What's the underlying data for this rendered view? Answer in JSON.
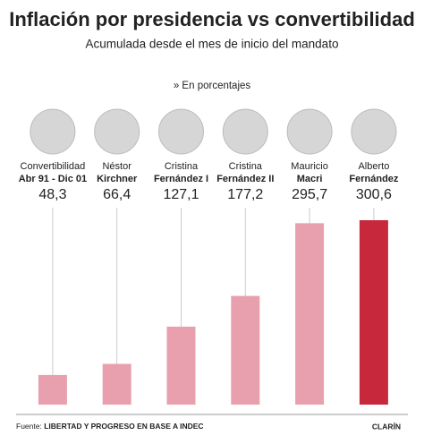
{
  "chart_data": {
    "type": "bar",
    "title": "Inflación por presidencia vs convertibilidad",
    "subtitle": "Acumulada desde el mes de inicio del mandato",
    "unit_note": "» En porcentajes",
    "categories": [
      "Convertibilidad",
      "Néstor",
      "Cristina",
      "Cristina",
      "Mauricio",
      "Alberto"
    ],
    "category_details": [
      "Abr 91 - Dic 01",
      "Kirchner",
      "Fernández I",
      "Fernández II",
      "Macri",
      "Fernández"
    ],
    "values": [
      48.3,
      66.4,
      127.1,
      177.2,
      295.7,
      300.6
    ],
    "value_labels": [
      "48,3",
      "66,4",
      "127,1",
      "177,2",
      "295,7",
      "300,6"
    ],
    "colors": [
      "#e8a0ae",
      "#e8a0ae",
      "#e8a0ae",
      "#e8a0ae",
      "#e8a0ae",
      "#c8283c"
    ],
    "label_color": "#c8283c",
    "source_label": "Fuente:",
    "source": "LIBERTAD Y PROGRESO EN BASE A INDEC",
    "brand": "CLARÍN"
  }
}
